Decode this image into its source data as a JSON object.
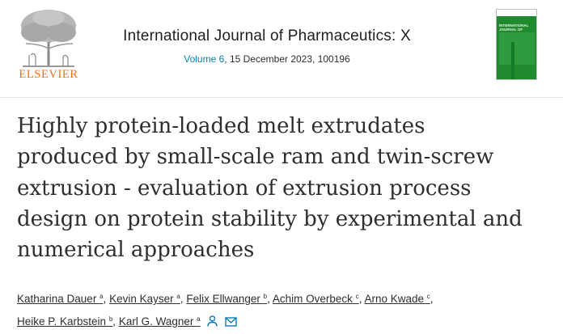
{
  "header": {
    "publisher": "ELSEVIER",
    "journal_title": "International Journal of Pharmaceutics: X",
    "volume_link": "Volume 6",
    "issue_rest": ", 15 December 2023, 100196",
    "cover_title": "INTERNATIONAL JOURNAL OF PHARMACEUTICS:X",
    "accent_color": "#e9711c",
    "link_color": "#0c7dbb"
  },
  "article": {
    "title_lines": [
      "Highly protein-loaded melt extrudates",
      "produced by small-scale ram and twin-screw",
      "extrusion - evaluation of extrusion process",
      "design on protein stability by experimental and",
      "numerical approaches"
    ]
  },
  "authors": [
    {
      "name": "Katharina Dauer",
      "sup": "a"
    },
    {
      "name": "Kevin Kayser",
      "sup": "a"
    },
    {
      "name": "Felix Ellwanger",
      "sup": "b"
    },
    {
      "name": "Achim Overbeck",
      "sup": "c"
    },
    {
      "name": "Arno Kwade",
      "sup": "c"
    },
    {
      "name": "Heike P. Karbstein",
      "sup": "b"
    },
    {
      "name": "Karl G. Wagner",
      "sup": "a"
    }
  ],
  "author_separator": ",",
  "icons": [
    "person-icon",
    "envelope-icon"
  ]
}
